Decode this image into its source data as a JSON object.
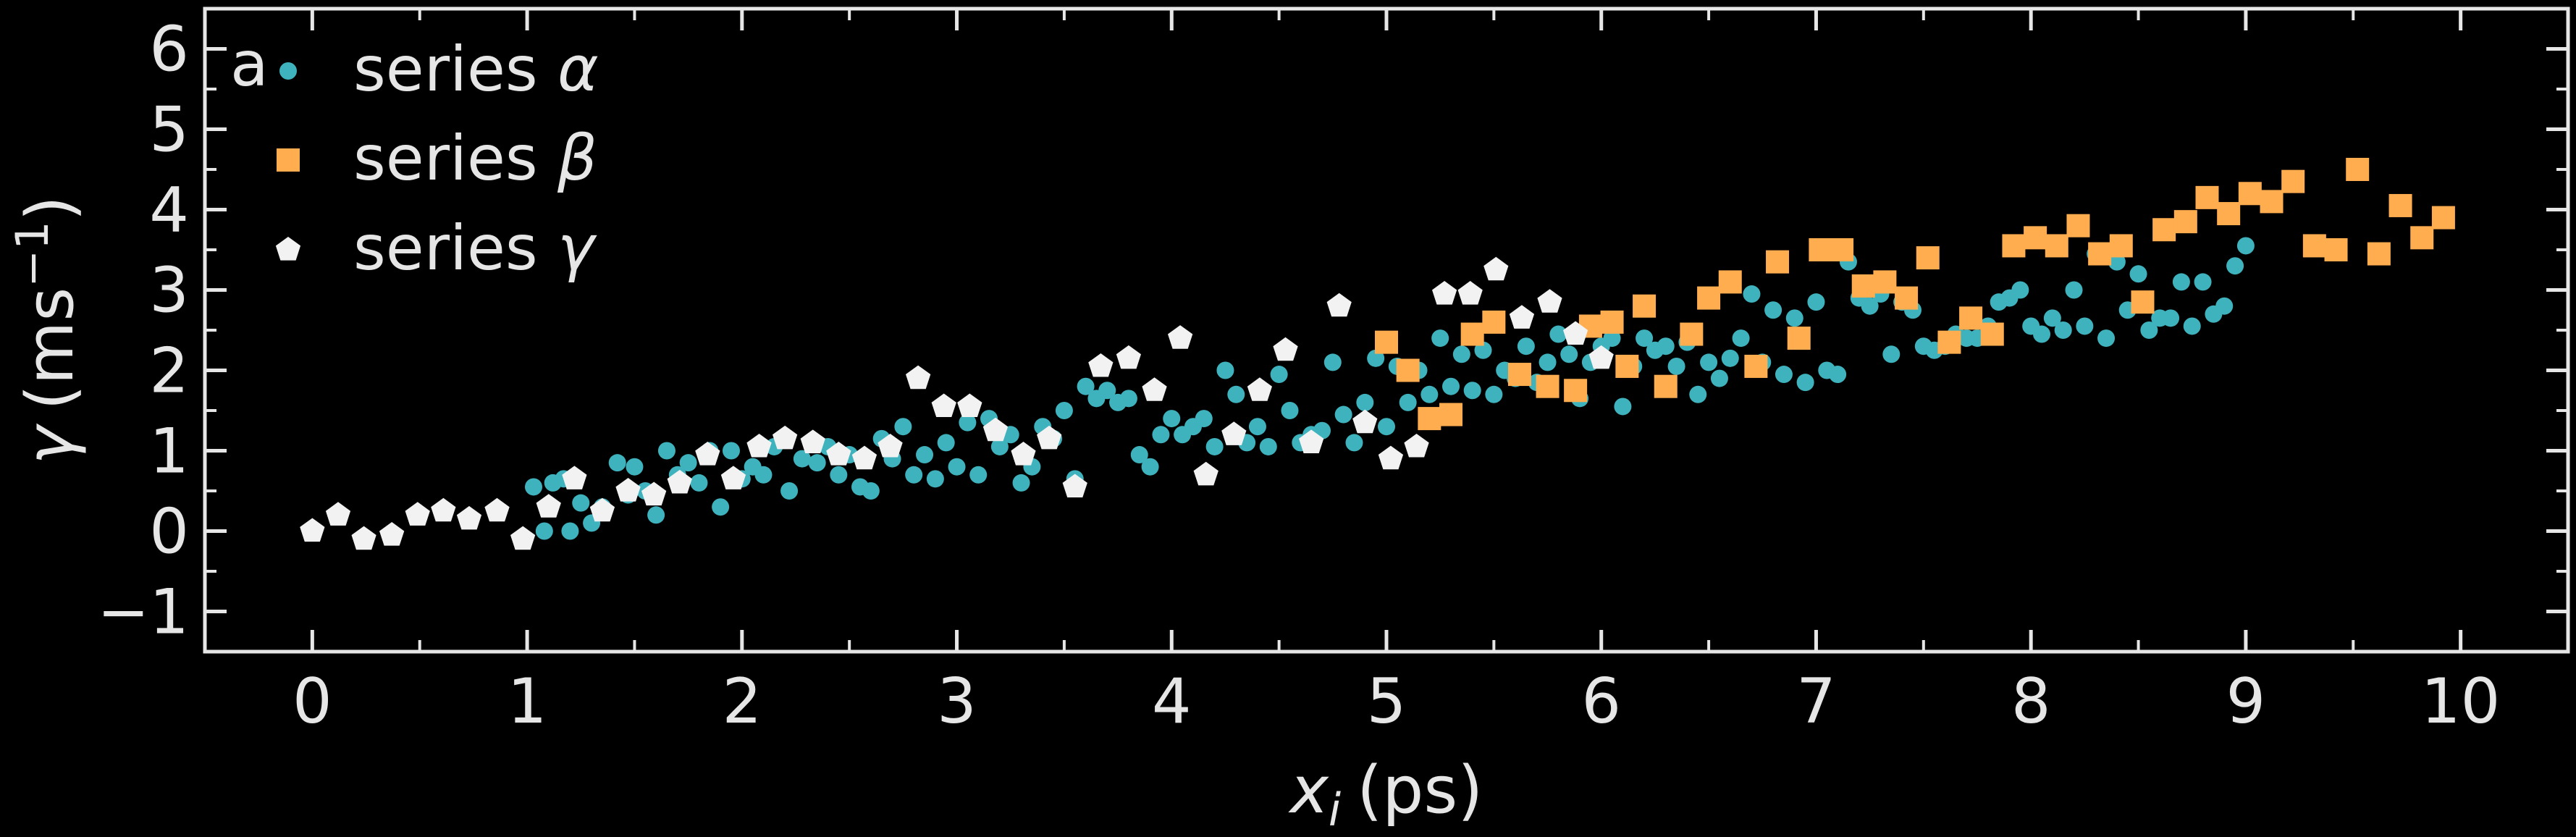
{
  "chart_data": {
    "type": "scatter",
    "panel_label": "a",
    "xlabel": {
      "base": "x",
      "sub": "i",
      "unit": "(ps)"
    },
    "ylabel": {
      "base": "γ",
      "unit_prefix": "(ms",
      "unit_sup": "−1",
      "unit_suffix": ")"
    },
    "xlim": [
      -0.5,
      10.5
    ],
    "ylim": [
      -1.5,
      6.5
    ],
    "xticks": [
      0,
      1,
      2,
      3,
      4,
      5,
      6,
      7,
      8,
      9,
      10
    ],
    "xtick_labels": [
      "0",
      "1",
      "2",
      "3",
      "4",
      "5",
      "6",
      "7",
      "8",
      "9",
      "10"
    ],
    "yticks": [
      -1,
      0,
      1,
      2,
      3,
      4,
      5,
      6
    ],
    "ytick_labels": [
      "−1",
      "0",
      "1",
      "2",
      "3",
      "4",
      "5",
      "6"
    ],
    "grid": false,
    "legend_position": "top-left",
    "colors": {
      "background": "#000000",
      "axes": "#e6e6e6",
      "alpha": "#3fb3bd",
      "beta": "#ffad4f",
      "gamma": "#f2f2f2"
    },
    "series": [
      {
        "name": "series α",
        "marker": "circle",
        "x": [
          1.03,
          1.08,
          1.12,
          1.17,
          1.2,
          1.25,
          1.3,
          1.35,
          1.42,
          1.47,
          1.5,
          1.55,
          1.6,
          1.65,
          1.7,
          1.75,
          1.8,
          1.85,
          1.9,
          1.95,
          2.0,
          2.05,
          2.1,
          2.15,
          2.22,
          2.28,
          2.35,
          2.4,
          2.45,
          2.5,
          2.55,
          2.6,
          2.65,
          2.7,
          2.75,
          2.8,
          2.85,
          2.9,
          2.95,
          3.0,
          3.05,
          3.1,
          3.15,
          3.2,
          3.25,
          3.3,
          3.35,
          3.4,
          3.45,
          3.5,
          3.55,
          3.6,
          3.65,
          3.7,
          3.75,
          3.8,
          3.85,
          3.9,
          3.95,
          4.0,
          4.05,
          4.1,
          4.15,
          4.2,
          4.25,
          4.3,
          4.35,
          4.4,
          4.45,
          4.5,
          4.55,
          4.6,
          4.65,
          4.7,
          4.75,
          4.8,
          4.85,
          4.9,
          4.95,
          5.0,
          5.05,
          5.1,
          5.15,
          5.2,
          5.25,
          5.3,
          5.35,
          5.4,
          5.45,
          5.5,
          5.55,
          5.6,
          5.65,
          5.7,
          5.75,
          5.8,
          5.85,
          5.9,
          5.95,
          6.0,
          6.05,
          6.1,
          6.15,
          6.2,
          6.25,
          6.3,
          6.35,
          6.4,
          6.45,
          6.5,
          6.55,
          6.6,
          6.65,
          6.7,
          6.75,
          6.8,
          6.85,
          6.9,
          6.95,
          7.0,
          7.05,
          7.1,
          7.15,
          7.2,
          7.25,
          7.3,
          7.35,
          7.4,
          7.45,
          7.5,
          7.55,
          7.6,
          7.65,
          7.7,
          7.75,
          7.8,
          7.85,
          7.9,
          7.95,
          8.0,
          8.05,
          8.1,
          8.15,
          8.2,
          8.25,
          8.3,
          8.35,
          8.4,
          8.45,
          8.5,
          8.55,
          8.6,
          8.65,
          8.7,
          8.75,
          8.8,
          8.85,
          8.9,
          8.95,
          9.0
        ],
        "y": [
          0.55,
          0.0,
          0.6,
          0.65,
          0.0,
          0.35,
          0.1,
          0.3,
          0.85,
          0.45,
          0.8,
          0.5,
          0.2,
          1.0,
          0.7,
          0.85,
          0.6,
          1.0,
          0.3,
          1.0,
          0.65,
          0.8,
          0.7,
          1.05,
          0.5,
          0.9,
          0.85,
          1.05,
          0.7,
          0.95,
          0.55,
          0.5,
          1.15,
          0.9,
          1.3,
          0.7,
          0.95,
          0.65,
          1.1,
          0.8,
          1.35,
          0.7,
          1.4,
          1.05,
          1.2,
          0.6,
          0.8,
          1.3,
          1.15,
          1.5,
          0.65,
          1.8,
          1.65,
          1.75,
          1.6,
          1.65,
          0.95,
          0.8,
          1.2,
          1.4,
          1.2,
          1.3,
          1.4,
          1.05,
          2.0,
          1.7,
          1.1,
          1.3,
          1.05,
          1.95,
          1.5,
          1.1,
          1.2,
          1.25,
          2.1,
          1.45,
          1.1,
          1.6,
          2.15,
          1.3,
          2.05,
          1.6,
          2.0,
          1.7,
          2.4,
          1.8,
          2.2,
          1.75,
          2.25,
          1.7,
          2.0,
          1.9,
          2.3,
          1.85,
          2.1,
          2.45,
          2.2,
          1.65,
          2.1,
          2.3,
          2.4,
          1.55,
          2.05,
          2.4,
          2.25,
          2.3,
          2.05,
          2.35,
          1.7,
          2.1,
          1.9,
          2.15,
          2.4,
          2.95,
          2.1,
          2.75,
          1.95,
          2.65,
          1.85,
          2.85,
          2.0,
          1.95,
          3.35,
          2.9,
          2.8,
          2.95,
          2.2,
          2.85,
          2.75,
          2.3,
          2.25,
          2.3,
          2.45,
          2.4,
          2.4,
          2.55,
          2.85,
          2.9,
          3.0,
          2.55,
          2.45,
          2.65,
          2.5,
          3.0,
          2.55,
          3.45,
          2.4,
          3.35,
          2.75,
          3.2,
          2.5,
          2.65,
          2.65,
          3.1,
          2.55,
          3.1,
          2.7,
          2.8,
          3.3,
          3.55
        ],
        "values_note_suppressed": true
      },
      {
        "name": "series β",
        "marker": "square",
        "x": [
          5.0,
          5.1,
          5.2,
          5.3,
          5.4,
          5.5,
          5.62,
          5.75,
          5.88,
          5.95,
          6.05,
          6.12,
          6.2,
          6.3,
          6.42,
          6.5,
          6.6,
          6.72,
          6.82,
          6.92,
          7.02,
          7.12,
          7.22,
          7.32,
          7.42,
          7.52,
          7.62,
          7.72,
          7.82,
          7.92,
          8.02,
          8.12,
          8.22,
          8.32,
          8.42,
          8.52,
          8.62,
          8.72,
          8.82,
          8.92,
          9.02,
          9.12,
          9.22,
          9.32,
          9.42,
          9.52,
          9.62,
          9.72,
          9.82,
          9.92
        ],
        "y": [
          2.35,
          2.0,
          1.4,
          1.45,
          2.45,
          2.6,
          1.95,
          1.8,
          1.75,
          2.55,
          2.6,
          2.05,
          2.8,
          1.8,
          2.45,
          2.9,
          3.1,
          2.05,
          3.35,
          2.4,
          3.5,
          3.5,
          3.05,
          3.1,
          2.9,
          3.4,
          2.35,
          2.65,
          2.45,
          3.55,
          3.65,
          3.55,
          3.8,
          3.45,
          3.55,
          2.85,
          3.75,
          3.85,
          4.15,
          3.95,
          4.2,
          4.1,
          4.35,
          3.55,
          3.5,
          4.5,
          3.45,
          4.05,
          3.65,
          3.9
        ]
      },
      {
        "name": "series γ",
        "marker": "pentagon",
        "x": [
          0.0,
          0.12,
          0.24,
          0.37,
          0.49,
          0.61,
          0.73,
          0.86,
          0.98,
          1.1,
          1.22,
          1.35,
          1.47,
          1.59,
          1.71,
          1.84,
          1.96,
          2.08,
          2.2,
          2.33,
          2.45,
          2.57,
          2.69,
          2.82,
          2.94,
          3.06,
          3.18,
          3.31,
          3.43,
          3.55,
          3.67,
          3.8,
          3.92,
          4.04,
          4.16,
          4.29,
          4.41,
          4.53,
          4.65,
          4.78,
          4.9,
          5.02,
          5.14,
          5.27,
          5.39,
          5.51,
          5.63,
          5.76,
          5.88,
          6.0
        ],
        "y": [
          0.0,
          0.2,
          -0.1,
          -0.05,
          0.2,
          0.25,
          0.15,
          0.25,
          -0.1,
          0.3,
          0.65,
          0.25,
          0.5,
          0.45,
          0.6,
          0.95,
          0.65,
          1.05,
          1.15,
          1.1,
          0.95,
          0.9,
          1.05,
          1.9,
          1.55,
          1.55,
          1.25,
          0.95,
          1.15,
          0.55,
          2.05,
          2.15,
          1.75,
          2.4,
          0.7,
          1.2,
          1.75,
          2.25,
          1.1,
          2.8,
          1.35,
          0.9,
          1.05,
          2.95,
          2.95,
          3.25,
          2.65,
          2.85,
          2.45,
          2.15
        ]
      }
    ]
  }
}
